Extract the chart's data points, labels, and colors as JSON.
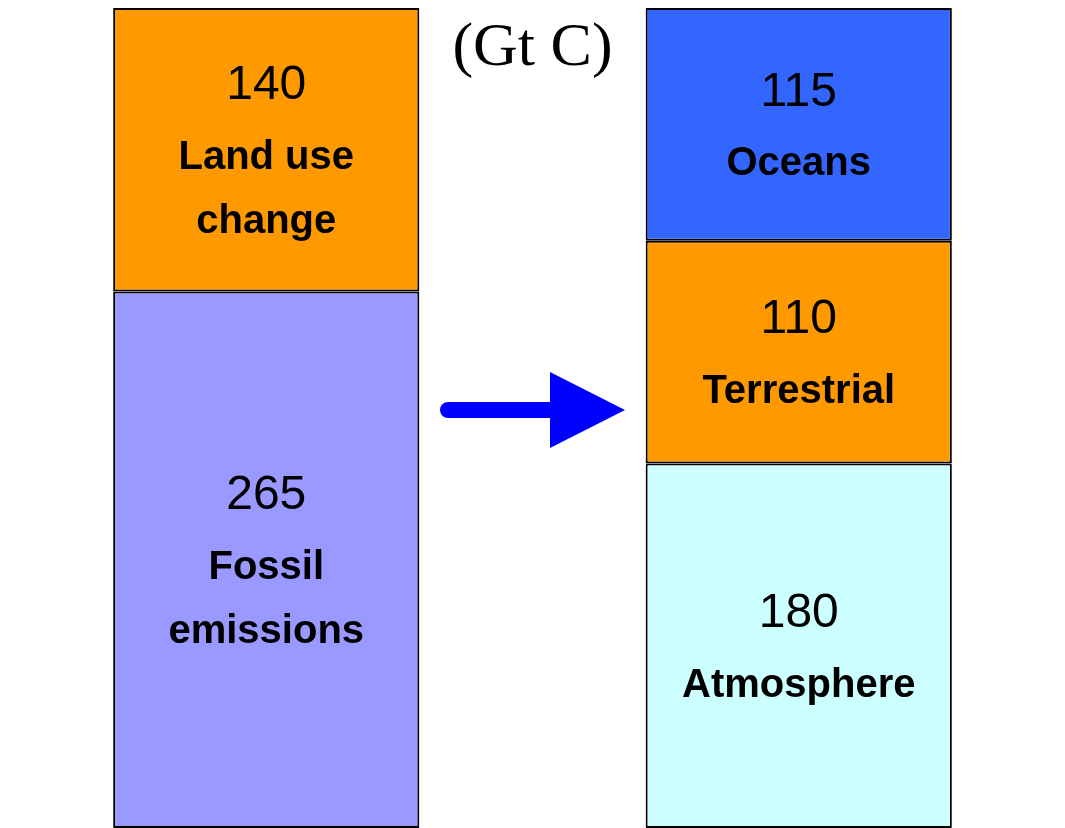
{
  "chart_data": {
    "type": "bar",
    "title": "(Gt C)",
    "categories": [
      null,
      null
    ],
    "stacked": true,
    "data_labels": true,
    "series": [
      {
        "name": "Fossil emissions",
        "color": "#9999ff",
        "values": [
          265,
          null
        ]
      },
      {
        "name": "Land use change",
        "color": "#ff9900",
        "values": [
          140,
          null
        ]
      },
      {
        "name": "Atmosphere",
        "color": "#ccffff",
        "values": [
          null,
          180
        ]
      },
      {
        "name": "Terrestrial",
        "color": "#ff9900",
        "values": [
          null,
          110
        ]
      },
      {
        "name": "Oceans",
        "color": "#3366ff",
        "values": [
          null,
          115
        ]
      }
    ]
  }
}
